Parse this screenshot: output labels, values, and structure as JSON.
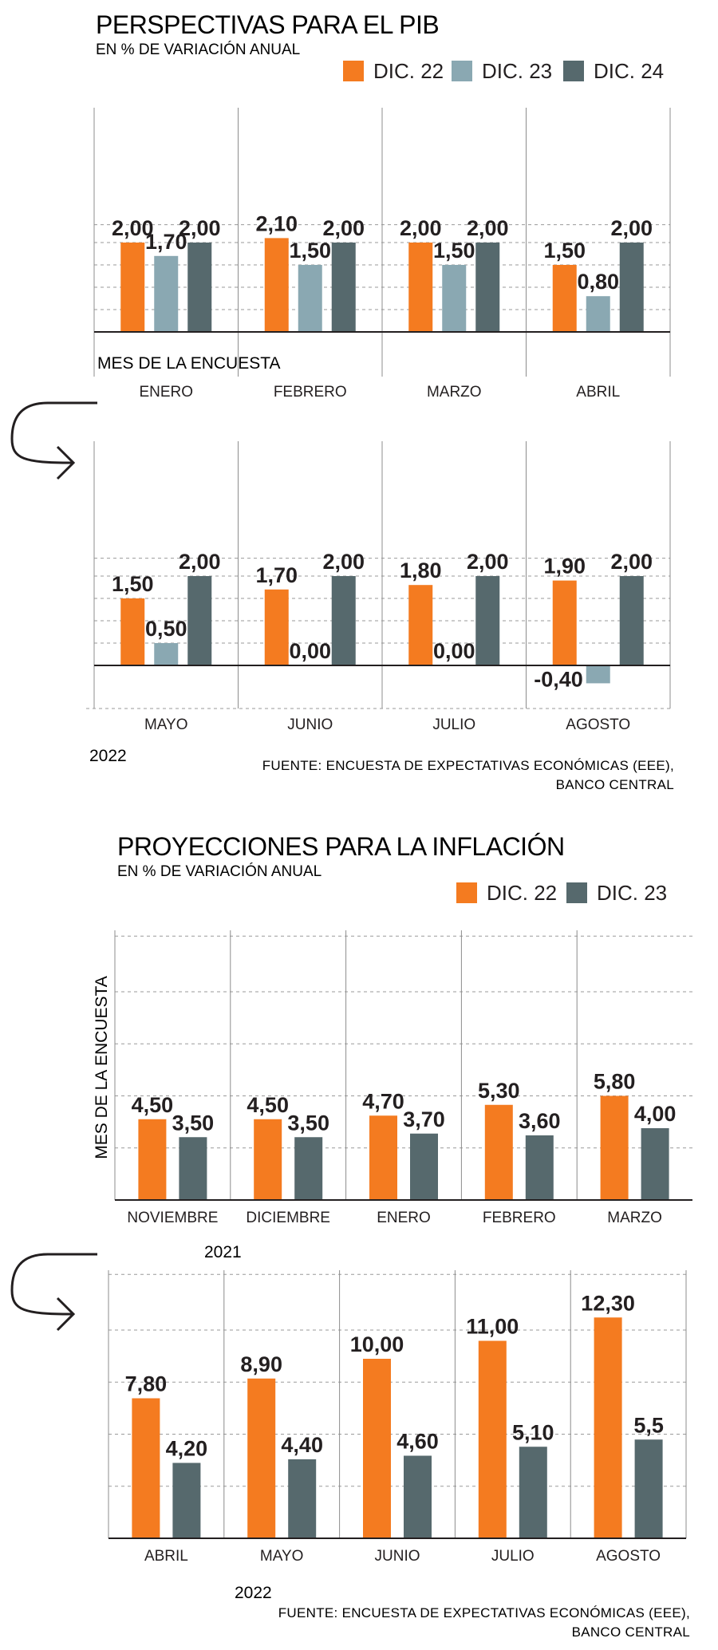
{
  "charts": [
    {
      "title": "PERSPECTIVAS PARA EL PIB",
      "subtitle": "EN % DE VARIACIÓN ANUAL",
      "axis_label": "MES DE LA ENCUESTA",
      "year_label": "2022",
      "source_line1": "FUENTE: ENCUESTA DE EXPECTATIVAS ECONÓMICAS (EEE),",
      "source_line2": "BANCO CENTRAL"
    },
    {
      "title": "PROYECCIONES PARA LA INFLACIÓN",
      "subtitle": "EN % DE VARIACIÓN ANUAL",
      "axis_label": "MES DE LA ENCUESTA",
      "year_label_1": "2021",
      "year_label_2": "2022",
      "source_line1": "FUENTE: ENCUESTA DE EXPECTATIVAS ECONÓMICAS (EEE),",
      "source_line2": "BANCO CENTRAL"
    }
  ],
  "colors": {
    "orange": "#f47b20",
    "light_blue": "#8aa8b2",
    "dark_slate": "#56696d",
    "grid": "#9a9a9a",
    "text": "#231f20"
  },
  "icons": [
    "curved-arrow-icon"
  ],
  "chart_data": [
    {
      "type": "bar",
      "title": "PERSPECTIVAS PARA EL PIB",
      "subtitle": "EN % DE VARIACIÓN ANUAL",
      "xlabel": "MES DE LA ENCUESTA",
      "ylabel": "",
      "legend_position": "top-right",
      "grid": true,
      "ylim": [
        -0.8,
        2.4
      ],
      "categories": [
        "ENERO",
        "FEBRERO",
        "MARZO",
        "ABRIL",
        "MAYO",
        "JUNIO",
        "JULIO",
        "AGOSTO"
      ],
      "series": [
        {
          "name": "DIC. 22",
          "color": "#f47b20",
          "values": [
            2.0,
            2.1,
            2.0,
            1.5,
            1.5,
            1.7,
            1.8,
            1.9
          ],
          "labels": [
            "2,00",
            "2,10",
            "2,00",
            "1,50",
            "1,50",
            "1,70",
            "1,80",
            "1,90"
          ]
        },
        {
          "name": "DIC. 23",
          "color": "#8aa8b2",
          "values": [
            1.7,
            1.5,
            1.5,
            0.8,
            0.5,
            0.0,
            0.0,
            -0.4
          ],
          "labels": [
            "1,70",
            "1,50",
            "1,50",
            "0,80",
            "0,50",
            "0,00",
            "0,00",
            "-0,40"
          ]
        },
        {
          "name": "DIC. 24",
          "color": "#56696d",
          "values": [
            2.0,
            2.0,
            2.0,
            2.0,
            2.0,
            2.0,
            2.0,
            2.0
          ],
          "labels": [
            "2,00",
            "2,00",
            "2,00",
            "2,00",
            "2,00",
            "2,00",
            "2,00",
            "2,00"
          ]
        }
      ]
    },
    {
      "type": "bar",
      "title": "PROYECCIONES PARA LA INFLACIÓN",
      "subtitle": "EN % DE VARIACIÓN ANUAL",
      "xlabel": "",
      "ylabel": "MES DE LA ENCUESTA",
      "legend_position": "top-right",
      "grid": true,
      "ylim": [
        0,
        15
      ],
      "categories": [
        "NOVIEMBRE",
        "DICIEMBRE",
        "ENERO",
        "FEBRERO",
        "MARZO",
        "ABRIL",
        "MAYO",
        "JUNIO",
        "JULIO",
        "AGOSTO"
      ],
      "series": [
        {
          "name": "DIC. 22",
          "color": "#f47b20",
          "values": [
            4.5,
            4.5,
            4.7,
            5.3,
            5.8,
            7.8,
            8.9,
            10.0,
            11.0,
            12.3
          ],
          "labels": [
            "4,50",
            "4,50",
            "4,70",
            "5,30",
            "5,80",
            "7,80",
            "8,90",
            "10,00",
            "11,00",
            "12,30"
          ]
        },
        {
          "name": "DIC. 23",
          "color": "#56696d",
          "values": [
            3.5,
            3.5,
            3.7,
            3.6,
            4.0,
            4.2,
            4.4,
            4.6,
            5.1,
            5.5
          ],
          "labels": [
            "3,50",
            "3,50",
            "3,70",
            "3,60",
            "4,00",
            "4,20",
            "4,40",
            "4,60",
            "5,10",
            "5,5"
          ]
        }
      ]
    }
  ]
}
